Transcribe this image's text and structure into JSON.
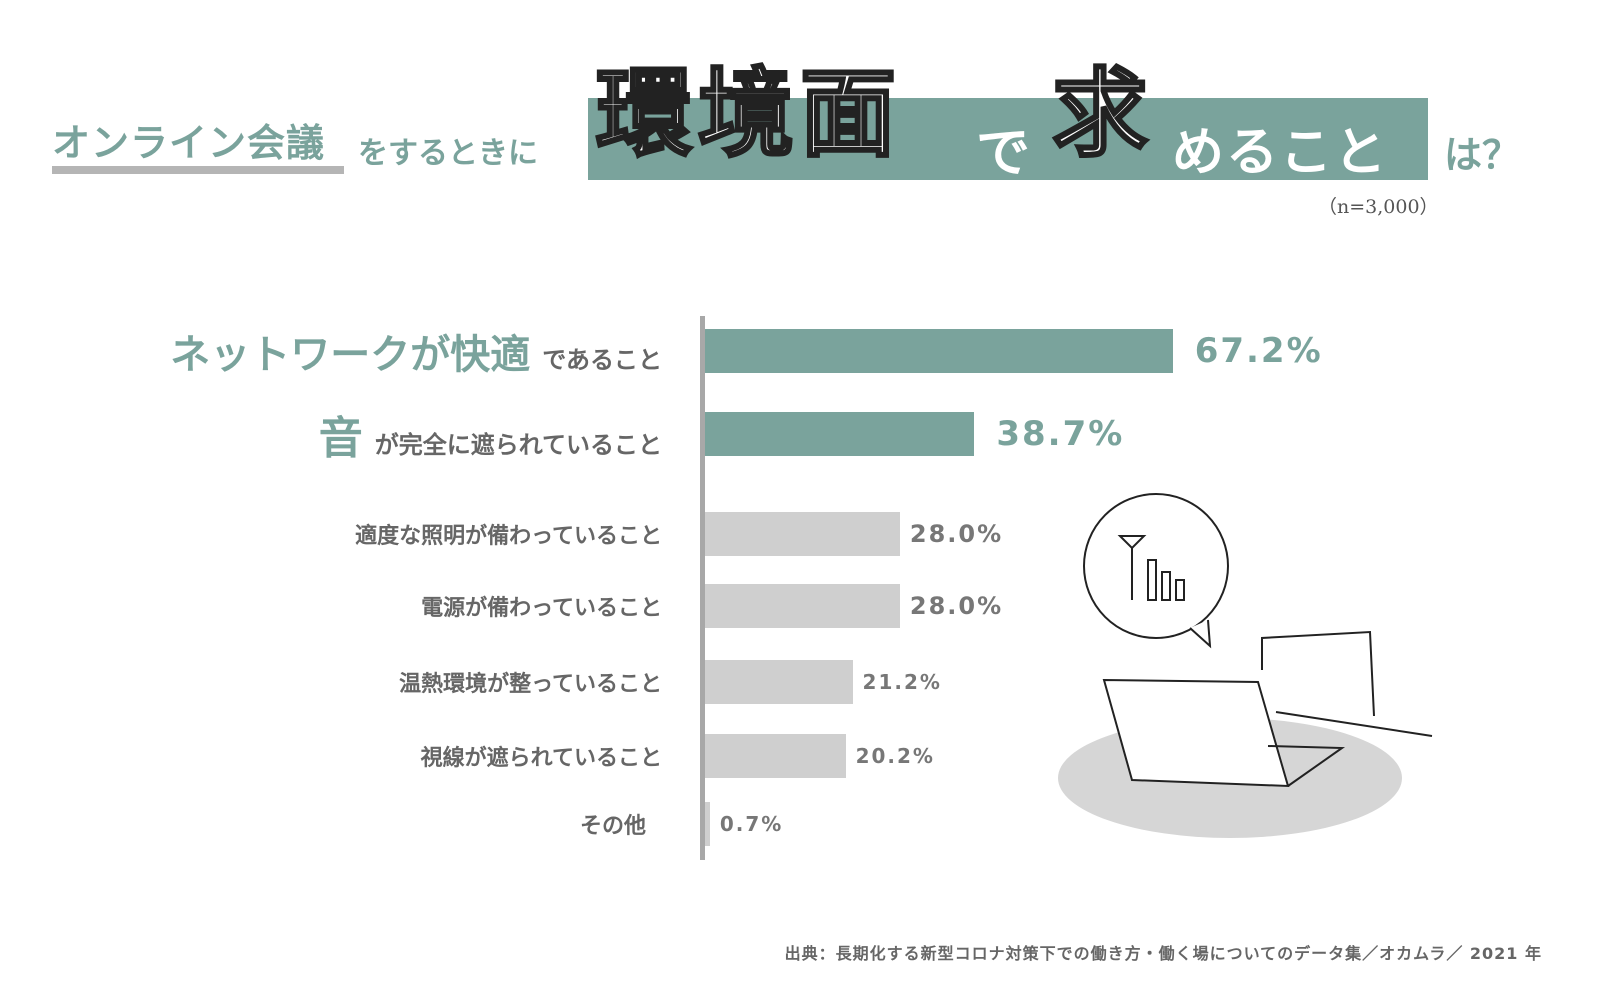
{
  "title": {
    "part1": "オンライン会議",
    "part2": "をするときに",
    "part3": "環境面",
    "part4": "で",
    "part5": "求",
    "part6": "めること",
    "part7": "は？",
    "sample": "（n=3,000）"
  },
  "source": "出典：長期化する新型コロナ対策下での働き方・働く場についてのデータ集／オカムラ／ 2021 年",
  "colors": {
    "accent": "#7aa39c",
    "muted": "#cfcfcf",
    "text": "#666666"
  },
  "chart_data": {
    "type": "bar",
    "orientation": "horizontal",
    "title": "オンライン会議をするときに環境面で求めることは？",
    "unit": "%",
    "xlim": [
      0,
      70
    ],
    "categories": [
      {
        "em": "ネットワークが快適",
        "rest": "であること"
      },
      {
        "em": "音",
        "rest": "が完全に遮られていること"
      },
      {
        "em": "",
        "rest": "適度な照明が備わっていること"
      },
      {
        "em": "",
        "rest": "電源が備わっていること"
      },
      {
        "em": "",
        "rest": "温熱環境が整っていること"
      },
      {
        "em": "",
        "rest": "視線が遮られていること"
      },
      {
        "em": "",
        "rest": "その他"
      }
    ],
    "values": [
      67.2,
      38.7,
      28.0,
      28.0,
      21.2,
      20.2,
      0.7
    ],
    "value_labels": [
      "67.2%",
      "38.7%",
      "28.0%",
      "28.0%",
      "21.2%",
      "20.2%",
      "0.7%"
    ],
    "highlighted": [
      true,
      true,
      false,
      false,
      false,
      false,
      false
    ]
  }
}
